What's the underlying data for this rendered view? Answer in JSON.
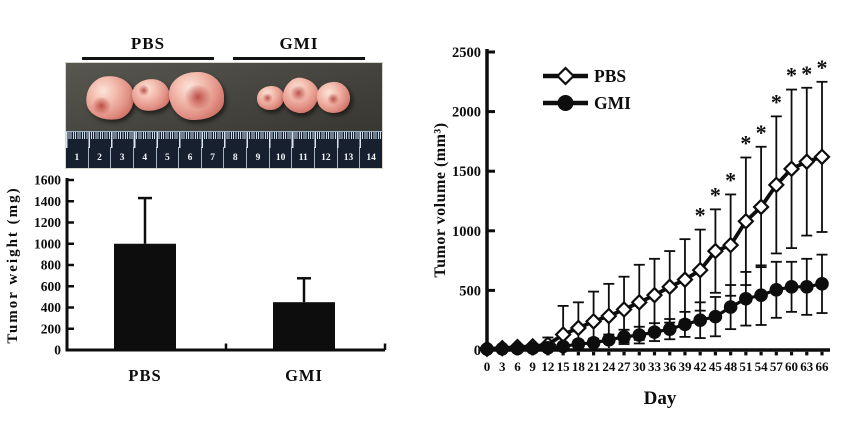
{
  "colors": {
    "ink": "#0d0d0d",
    "background": "#ffffff",
    "photo_background": "#45443e",
    "ruler_background": "#16202e",
    "ruler_tick": "#d5e4f2",
    "tumor_pink": "#f0b0a2"
  },
  "photo_panel": {
    "groups": [
      {
        "label": "PBS",
        "specimens": 3
      },
      {
        "label": "GMI",
        "specimens": 3
      }
    ],
    "ruler_numbers": [
      "1",
      "2",
      "3",
      "4",
      "5",
      "6",
      "7",
      "8",
      "9",
      "10",
      "11",
      "12",
      "13",
      "14"
    ]
  },
  "chart_data": [
    {
      "type": "bar",
      "title": "",
      "categories": [
        "PBS",
        "GMI"
      ],
      "values": [
        1000,
        450
      ],
      "errors_up": [
        430,
        225
      ],
      "ylabel": "Tumor weight (mg)",
      "ylim": [
        0,
        1600
      ],
      "yticks": [
        0,
        200,
        400,
        600,
        800,
        1000,
        1200,
        1400,
        1600
      ],
      "bar_color": "#0d0d0d",
      "grid": false
    },
    {
      "type": "line",
      "title": "",
      "xlabel": "Day",
      "ylabel": "Tumor volume (mm³)",
      "ylim": [
        0,
        2500
      ],
      "yticks": [
        0,
        500,
        1000,
        1500,
        2000,
        2500
      ],
      "x": [
        0,
        3,
        6,
        9,
        12,
        15,
        18,
        21,
        24,
        27,
        30,
        33,
        36,
        39,
        42,
        45,
        48,
        51,
        54,
        57,
        60,
        63,
        66
      ],
      "series": [
        {
          "name": "PBS",
          "marker": "open-diamond",
          "color": "#0d0d0d",
          "values": [
            10,
            15,
            25,
            30,
            45,
            130,
            185,
            240,
            285,
            340,
            400,
            460,
            530,
            590,
            670,
            830,
            880,
            1080,
            1200,
            1385,
            1520,
            1580,
            1620
          ],
          "errors": [
            5,
            8,
            12,
            18,
            60,
            240,
            215,
            250,
            270,
            275,
            315,
            305,
            300,
            340,
            340,
            350,
            425,
            535,
            505,
            575,
            665,
            620,
            630
          ]
        },
        {
          "name": "GMI",
          "marker": "filled-circle",
          "color": "#0d0d0d",
          "values": [
            8,
            10,
            12,
            15,
            18,
            30,
            50,
            60,
            85,
            110,
            125,
            150,
            175,
            215,
            250,
            280,
            360,
            430,
            460,
            505,
            530,
            530,
            555
          ],
          "errors": [
            0,
            0,
            0,
            5,
            10,
            20,
            30,
            35,
            45,
            60,
            70,
            75,
            85,
            105,
            150,
            165,
            185,
            225,
            250,
            235,
            210,
            235,
            245
          ]
        }
      ],
      "significance": {
        "symbol": "*",
        "series": "PBS",
        "days": [
          42,
          45,
          48,
          51,
          54,
          57,
          60,
          63,
          66
        ]
      },
      "legend": {
        "position": "top-left",
        "entries": [
          "PBS",
          "GMI"
        ]
      },
      "grid": false
    }
  ]
}
